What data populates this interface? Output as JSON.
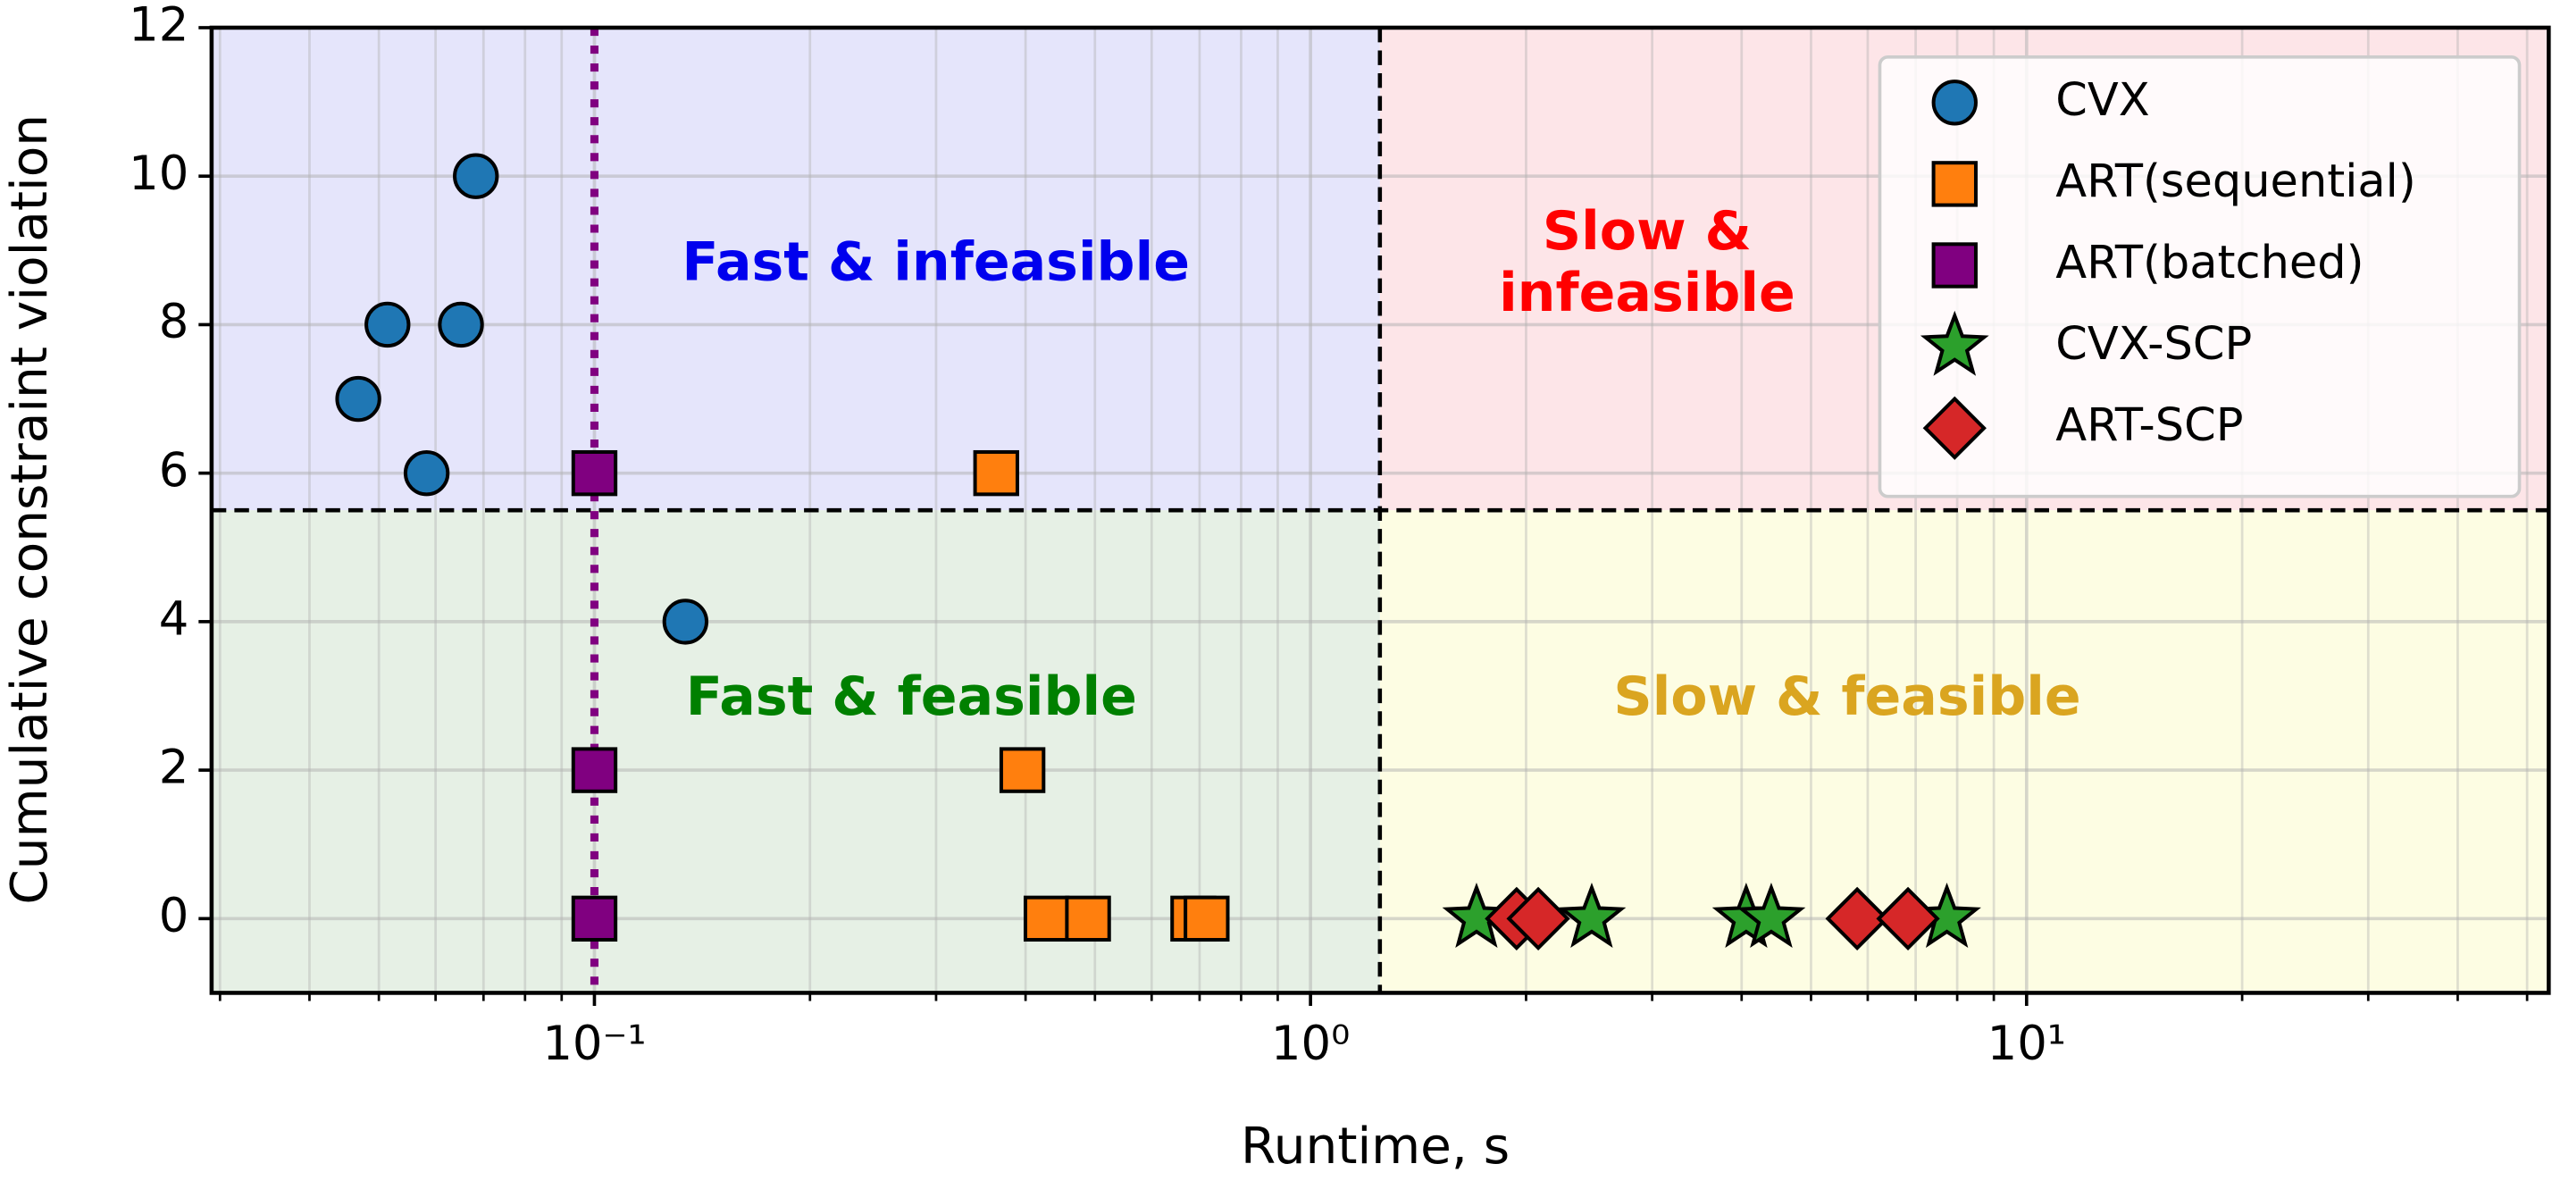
{
  "chart_data": {
    "type": "scatter",
    "x_label": "Runtime, s",
    "y_label": "Cumulative constraint violation",
    "xlim": [
      0.0292,
      53.6
    ],
    "ylim": [
      -1,
      12
    ],
    "xscale": "log",
    "grid": true,
    "xticks": [
      {
        "value": 0.1,
        "label": "10⁻¹"
      },
      {
        "value": 1,
        "label": "10⁰"
      },
      {
        "value": 10,
        "label": "10¹"
      }
    ],
    "xminor_ticks": [
      0.03,
      0.04,
      0.05,
      0.06,
      0.07,
      0.08,
      0.09,
      0.2,
      0.3,
      0.4,
      0.5,
      0.6,
      0.7,
      0.8,
      0.9,
      2,
      3,
      4,
      5,
      6,
      7,
      8,
      9,
      20,
      30,
      40,
      50
    ],
    "yticks": [
      0,
      2,
      4,
      6,
      8,
      10,
      12
    ],
    "runtime_threshold": 1.25,
    "violation_threshold": 5.5,
    "reference_runtime": 0.1,
    "reference_color": "#800080",
    "regions": [
      {
        "lines": [
          "Fast & infeasible"
        ],
        "color": "#0000ee",
        "fill": "#e5e5fb"
      },
      {
        "lines": [
          "Slow &",
          "infeasible"
        ],
        "color": "#ff0000",
        "fill": "#fde5e8"
      },
      {
        "lines": [
          "Fast & feasible"
        ],
        "color": "#008000",
        "fill": "#e6f0e5"
      },
      {
        "lines": [
          "Slow & feasible"
        ],
        "color": "#daa520",
        "fill": "#fdfde3"
      }
    ],
    "legend": "upper right",
    "series": [
      {
        "name": "CVX",
        "color": "#1f77b4",
        "marker": "circle",
        "x": [
          0.0468,
          0.0514,
          0.0651,
          0.0683,
          0.0583,
          0.134
        ],
        "values": [
          7,
          8,
          8,
          10,
          6,
          4
        ]
      },
      {
        "name": "ART(sequential)",
        "color": "#ff7f0e",
        "marker": "square",
        "x": [
          0.364,
          0.396,
          0.428,
          0.489,
          0.686,
          0.716
        ],
        "values": [
          6,
          2,
          0,
          0,
          0,
          0
        ]
      },
      {
        "name": "ART(batched)",
        "color": "#800080",
        "marker": "square",
        "x": [
          0.1,
          0.1,
          0.1
        ],
        "values": [
          6,
          2,
          0
        ]
      },
      {
        "name": "CVX-SCP",
        "color": "#2ca02c",
        "marker": "star",
        "x": [
          1.705,
          2.47,
          4.06,
          4.4,
          7.74
        ],
        "values": [
          0,
          0,
          0,
          0,
          0
        ]
      },
      {
        "name": "ART-SCP",
        "color": "#d62728",
        "marker": "diamond",
        "x": [
          1.94,
          2.08,
          5.8,
          6.83
        ],
        "values": [
          0,
          0,
          0,
          0
        ]
      }
    ]
  }
}
